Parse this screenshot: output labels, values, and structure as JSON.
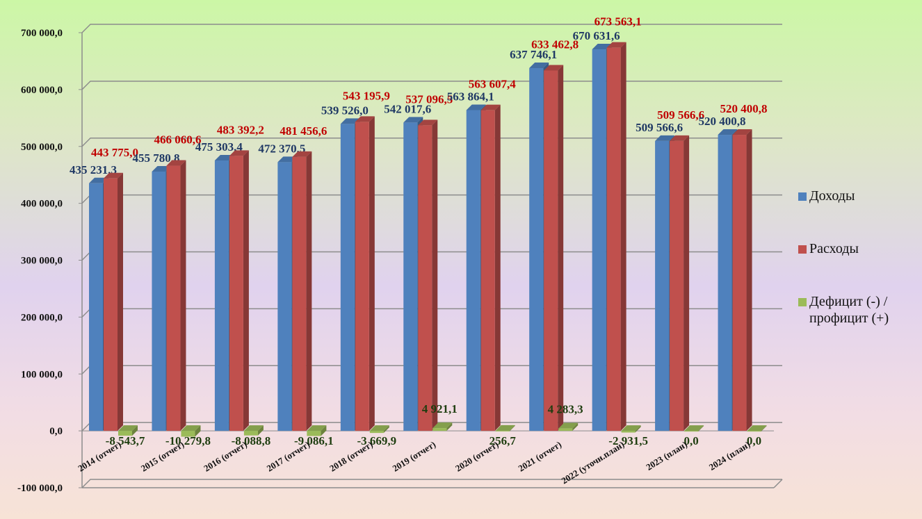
{
  "chart_data": {
    "type": "bar3d",
    "categories": [
      "2014 (отчет)",
      "2015 (отчет)",
      "2016 (отчет)",
      "2017 (отчет)",
      "2018 (отчет)",
      "2019 (отчет)",
      "2020 (отчет)",
      "2021 (отчет)",
      "2022 (уточн.план)",
      "2023 (план)",
      "2024 (план)"
    ],
    "series": [
      {
        "name": "Доходы",
        "color": "#4f81bd",
        "label_color": "#1f3864",
        "values": [
          435231.3,
          455780.8,
          475303.4,
          472370.5,
          539526.0,
          542017.6,
          563864.1,
          637746.1,
          670631.6,
          509566.6,
          520400.8
        ],
        "value_labels": [
          "435 231,3",
          "455 780,8",
          "475 303,4",
          "472 370,5",
          "539 526,0",
          "542 017,6",
          "563 864,1",
          "637 746,1",
          "670 631,6",
          "509 566,6",
          "520 400,8"
        ]
      },
      {
        "name": "Расходы",
        "color": "#c0504d",
        "label_color": "#c00000",
        "values": [
          443775.0,
          466060.6,
          483392.2,
          481456.6,
          543195.9,
          537096.5,
          563607.4,
          633462.8,
          673563.1,
          509566.6,
          520400.8
        ],
        "value_labels": [
          "443 775,0",
          "466 060,6",
          "483 392,2",
          "481 456,6",
          "543 195,9",
          "537 096,5",
          "563 607,4",
          "633 462,8",
          "673 563,1",
          "509 566,6",
          "520 400,8"
        ]
      },
      {
        "name": "Дефицит (-) / профицит (+)",
        "color": "#9bbb59",
        "label_color": "#1e3d0f",
        "values": [
          -8543.7,
          -10279.8,
          -8088.8,
          -9086.1,
          -3669.9,
          4921.1,
          256.7,
          4283.3,
          -2931.5,
          0.0,
          0.0
        ],
        "value_labels": [
          "-8 543,7",
          "-10 279,8",
          "-8 088,8",
          "-9 086,1",
          "-3 669,9",
          "4 921,1",
          "256,7",
          "4 283,3",
          "-2 931,5",
          "0,0",
          "0,0"
        ]
      }
    ],
    "ylim": [
      -100000,
      700000
    ],
    "yticks": [
      {
        "value": -100000,
        "label": "-100 000,0"
      },
      {
        "value": 0,
        "label": "0,0"
      },
      {
        "value": 100000,
        "label": "100 000,0"
      },
      {
        "value": 200000,
        "label": "200 000,0"
      },
      {
        "value": 300000,
        "label": "300 000,0"
      },
      {
        "value": 400000,
        "label": "400 000,0"
      },
      {
        "value": 500000,
        "label": "500 000,0"
      },
      {
        "value": 600000,
        "label": "600 000,0"
      },
      {
        "value": 700000,
        "label": "700 000,0"
      }
    ],
    "grid": true,
    "legend": "right"
  }
}
